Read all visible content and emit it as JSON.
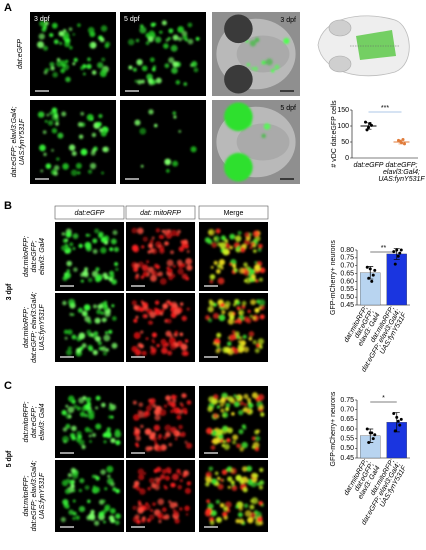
{
  "figure": {
    "panels": [
      {
        "label": "A",
        "image_labels": [
          "3 dpf",
          "5 dpf"
        ],
        "brightfield_labels": [
          "3 dpf",
          "5 dpf"
        ],
        "row_labels": [
          [
            "dat:eGFP"
          ],
          [
            "dat:eGFP; elavl3:Gal4;",
            "UAS:fynY531F"
          ]
        ]
      },
      {
        "label": "B",
        "stage": "3 dpf",
        "column_labels": [
          "dat:eGFP",
          "dat: mitoRFP",
          "Merge"
        ],
        "row_labels": [
          [
            "dat:mitoRFP;",
            "dat:eGFP;",
            "elavl3: Gal4"
          ],
          [
            "dat:mitoRFP;",
            "dat:eGFP; elavl3:Gal4;",
            "UAS:fynY531F"
          ]
        ]
      },
      {
        "label": "C",
        "stage": "5 dpf",
        "row_labels": [
          [
            "dat:mitoRFP;",
            "dat:eGFP;",
            "elavl3: Gal4"
          ],
          [
            "dat:mitoRFP;",
            "dat:eGFP; elavl3:Gal4;",
            "UAS:fynY531F"
          ]
        ]
      }
    ]
  },
  "chart_data": [
    {
      "type": "dot",
      "ylabel": "# vDC dat:eGFP cells",
      "categories": [
        [
          "dat:eGFP"
        ],
        [
          "dat:eGFP;",
          "elavl3:Gal4;",
          "UAS:fynY531F"
        ]
      ],
      "values": [
        100,
        50
      ],
      "errors": [
        10,
        6
      ],
      "points": [
        [
          112,
          95,
          102,
          88,
          108
        ],
        [
          55,
          48,
          44,
          52,
          58
        ]
      ],
      "colors": [
        "#000000",
        "#e07b39"
      ],
      "ylim": [
        0,
        150
      ],
      "yticks": [
        0,
        50,
        100,
        150
      ],
      "significance": "***"
    },
    {
      "type": "bar",
      "ylabel": "GFP-mCherry+ neurons",
      "categories": [
        [
          "dat:mitoRFP;",
          "dat:eGFP;",
          "elavl3: Gal4"
        ],
        [
          "dat:mitoRFP;",
          "dat:eGFP; elavl3:Gal4;",
          "UAS:fynY531F"
        ]
      ],
      "values": [
        0.655,
        0.775
      ],
      "errors": [
        0.04,
        0.035
      ],
      "points": [
        [
          0.69,
          0.68,
          0.64,
          0.62,
          0.6,
          0.67
        ],
        [
          0.79,
          0.8,
          0.78,
          0.71,
          0.76,
          0.8
        ]
      ],
      "colors": [
        "#b8d4f0",
        "#1a35e0"
      ],
      "ylim": [
        0.45,
        0.8
      ],
      "yticks": [
        0.45,
        {
          "value": 0.5,
          "label": "0.50"
        },
        0.55,
        {
          "value": 0.6,
          "label": "0.60"
        },
        0.65,
        {
          "value": 0.7,
          "label": "0.70"
        },
        0.75,
        {
          "value": 0.8,
          "label": "0.80"
        }
      ],
      "significance": "**"
    },
    {
      "type": "bar",
      "ylabel": "GFP-mCherry+ neurons",
      "categories": [
        [
          "dat:mitoRFP;",
          "dat:eGFP;",
          "elavl3: Gal4"
        ],
        [
          "dat:mitoRFP;",
          "dat:eGFP; elavl3:Gal4;",
          "UAS:fynY531F"
        ]
      ],
      "values": [
        0.565,
        0.635
      ],
      "errors": [
        0.035,
        0.05
      ],
      "points": [
        [
          0.6,
          0.58,
          0.55,
          0.53,
          0.58,
          0.57
        ],
        [
          0.68,
          0.66,
          0.62,
          0.59,
          0.64,
          0.65
        ]
      ],
      "colors": [
        "#b8d4f0",
        "#1a35e0"
      ],
      "ylim": [
        0.45,
        0.75
      ],
      "yticks": [
        0.45,
        {
          "value": 0.5,
          "label": "0.50"
        },
        0.55,
        {
          "value": 0.6,
          "label": "0.60"
        },
        0.65,
        {
          "value": 0.7,
          "label": "0.70"
        },
        0.75
      ],
      "significance": "*"
    }
  ]
}
